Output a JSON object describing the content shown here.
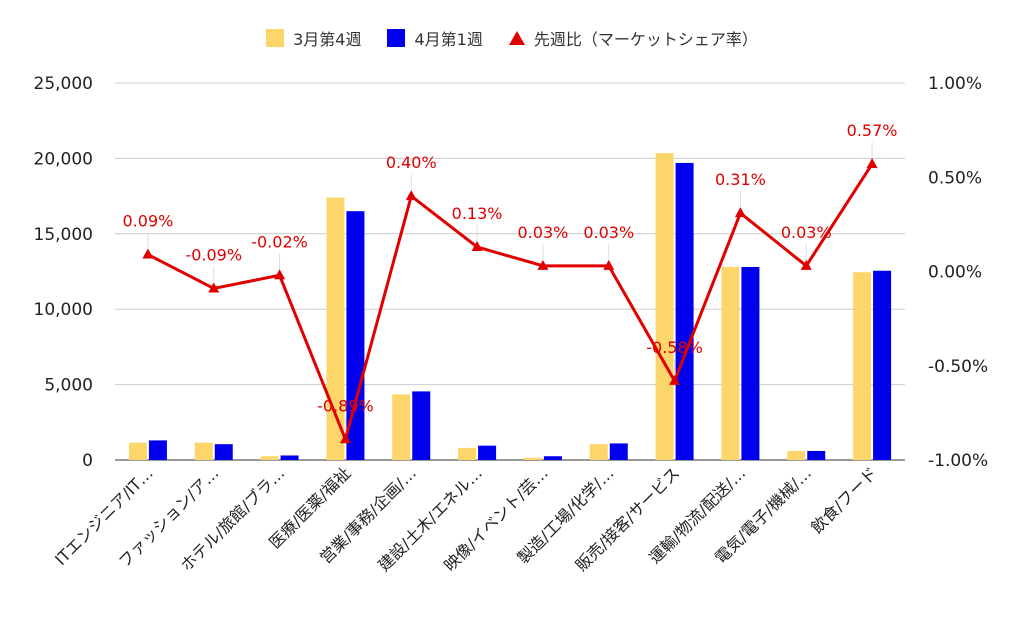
{
  "chart_data": {
    "type": "bar",
    "categories": [
      "ITエンジニア/IT…",
      "ファッション/ア…",
      "ホテル/旅館/ブラ…",
      "医療/医薬/福祉",
      "営業/事務/企画/…",
      "建設/土木/エネル…",
      "映像/イベント/芸…",
      "製造/工場/化学/…",
      "販売/接客/サービス",
      "運輸/物流/配送/…",
      "電気/電子/機械/…",
      "飲食/フード"
    ],
    "series": [
      {
        "name": "3月第4週",
        "type": "bar",
        "axis": "left",
        "color": "#fcd66a",
        "values": [
          1150,
          1150,
          250,
          17400,
          4350,
          800,
          150,
          1050,
          20350,
          12800,
          600,
          12450
        ]
      },
      {
        "name": "4月第1週",
        "type": "bar",
        "axis": "left",
        "color": "#0000ee",
        "values": [
          1300,
          1050,
          300,
          16500,
          4550,
          950,
          250,
          1100,
          19700,
          12800,
          600,
          12550
        ]
      },
      {
        "name": "先週比（マーケットシェア率）",
        "type": "line",
        "axis": "right",
        "color": "#e00000",
        "values": [
          0.09,
          -0.09,
          -0.02,
          -0.89,
          0.4,
          0.13,
          0.03,
          0.03,
          -0.58,
          0.31,
          0.03,
          0.57
        ],
        "labels": [
          "0.09%",
          "-0.09%",
          "-0.02%",
          "-0.89%",
          "0.40%",
          "0.13%",
          "0.03%",
          "0.03%",
          "-0.58%",
          "0.31%",
          "0.03%",
          "0.57%"
        ]
      }
    ],
    "y_left": {
      "ylim": [
        0,
        25000
      ],
      "ticks": [
        "0",
        "5,000",
        "10,000",
        "15,000",
        "20,000",
        "25,000"
      ]
    },
    "y_right": {
      "ylim": [
        -1.0,
        1.0
      ],
      "ticks": [
        "-1.00%",
        "-0.50%",
        "0.00%",
        "0.50%",
        "1.00%"
      ]
    },
    "grid": true,
    "legend_position": "top-center"
  }
}
